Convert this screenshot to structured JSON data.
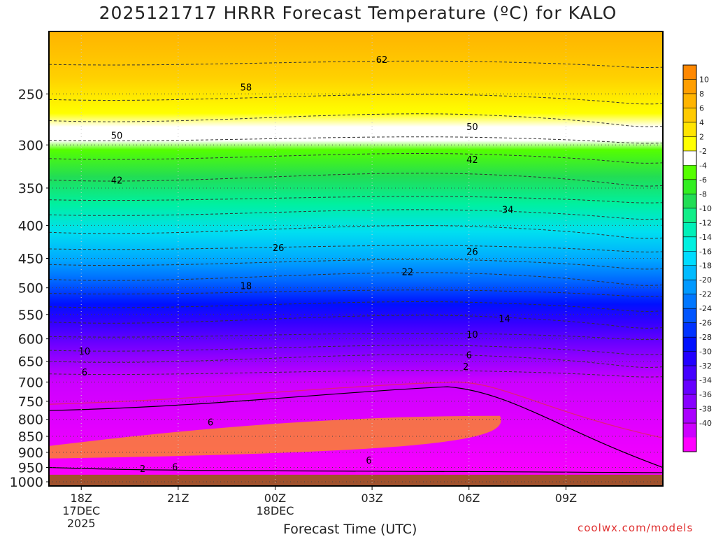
{
  "title": "2025121717 HRRR Forecast Temperature (ºC) for KALO",
  "xlabel": "Forecast Time (UTC)",
  "credit": "coolwx.com/models",
  "chart_data": {
    "type": "heatmap",
    "y_axis": {
      "scale": "log",
      "inverted": true,
      "range": [
        1015,
        200
      ],
      "tick_labels": [
        250,
        300,
        350,
        400,
        450,
        500,
        550,
        600,
        650,
        700,
        750,
        800,
        850,
        900,
        950,
        1000
      ]
    },
    "x_axis": {
      "range_hours": [
        -1,
        18
      ],
      "ticks": [
        {
          "h": 0,
          "lines": [
            "18Z",
            "17DEC",
            "2025"
          ]
        },
        {
          "h": 3,
          "lines": [
            "21Z"
          ]
        },
        {
          "h": 6,
          "lines": [
            "00Z",
            "18DEC"
          ]
        },
        {
          "h": 9,
          "lines": [
            "03Z"
          ]
        },
        {
          "h": 12,
          "lines": [
            "06Z"
          ]
        },
        {
          "h": 15,
          "lines": [
            "09Z"
          ]
        }
      ]
    },
    "grid": true,
    "colorbar": {
      "placement": "right",
      "labels": [
        10,
        8,
        6,
        4,
        2,
        -2,
        -4,
        -6,
        -8,
        -10,
        -12,
        -14,
        -16,
        -18,
        -20,
        -22,
        -24,
        -26,
        -28,
        -30,
        -32,
        -34,
        -36,
        -38,
        -40
      ],
      "colors": [
        "#ff8800",
        "#ff9e00",
        "#ffb400",
        "#ffca00",
        "#ffe400",
        "#ffff00",
        "#ffffff",
        "#55ff00",
        "#33ee22",
        "#22dd55",
        "#11ee88",
        "#00f0b8",
        "#00f0e0",
        "#00dcff",
        "#00bbff",
        "#0099ff",
        "#0077ff",
        "#0055ff",
        "#0033ff",
        "#0010ff",
        "#2200ff",
        "#4400ff",
        "#6600ff",
        "#8800ff",
        "#aa00ff",
        "#cc00ff",
        "#ff00ff"
      ]
    },
    "surface_color": "#a0522d",
    "contour_labels": [
      {
        "v": "62",
        "h": 9.3,
        "p": 221
      },
      {
        "v": "58",
        "h": 5.1,
        "p": 244
      },
      {
        "v": "50",
        "h": 1.1,
        "p": 290
      },
      {
        "v": "50",
        "h": 12.1,
        "p": 281
      },
      {
        "v": "42",
        "h": 1.1,
        "p": 340
      },
      {
        "v": "42",
        "h": 12.1,
        "p": 316
      },
      {
        "v": "34",
        "h": 13.2,
        "p": 378
      },
      {
        "v": "26",
        "h": 6.1,
        "p": 433
      },
      {
        "v": "26",
        "h": 12.1,
        "p": 439
      },
      {
        "v": "22",
        "h": 10.1,
        "p": 472
      },
      {
        "v": "18",
        "h": 5.1,
        "p": 496
      },
      {
        "v": "14",
        "h": 13.1,
        "p": 558
      },
      {
        "v": "10",
        "h": 12.1,
        "p": 590
      },
      {
        "v": "10",
        "h": 0.1,
        "p": 627
      },
      {
        "v": "6",
        "h": 12.0,
        "p": 635
      },
      {
        "v": "6",
        "h": 0.1,
        "p": 675
      },
      {
        "v": "2",
        "h": 11.9,
        "p": 662
      },
      {
        "v": "6",
        "h": 4.0,
        "p": 808
      },
      {
        "v": "6",
        "h": 8.9,
        "p": 925
      },
      {
        "v": "6",
        "h": 2.9,
        "p": 948
      },
      {
        "v": "2",
        "h": 1.9,
        "p": 953
      }
    ]
  }
}
